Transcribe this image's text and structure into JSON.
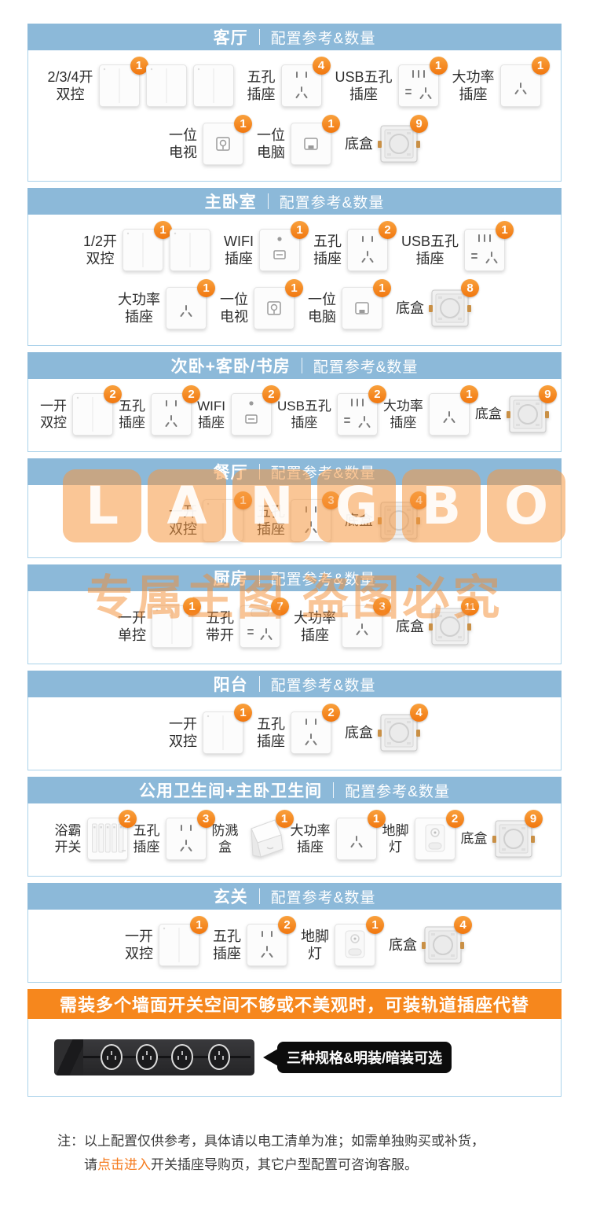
{
  "sections": [
    {
      "id": "living-room",
      "title": "客厅",
      "subtitle": "配置参考&数量",
      "rows": [
        [
          {
            "label": [
              "2/3/4开",
              "双控"
            ],
            "icon": "switch-panel",
            "panels": 3,
            "count": "1"
          },
          {
            "label": [
              "五孔",
              "插座"
            ],
            "icon": "socket5",
            "panels": 1,
            "count": "4"
          },
          {
            "label": [
              "USB五孔",
              "插座"
            ],
            "icon": "usb5",
            "panels": 1,
            "count": "1"
          },
          {
            "label": [
              "大功率",
              "插座"
            ],
            "icon": "power3",
            "panels": 1,
            "count": "1"
          }
        ],
        [
          {
            "label": [
              "一位",
              "电视"
            ],
            "icon": "tv",
            "panels": 1,
            "count": "1"
          },
          {
            "label": [
              "一位",
              "电脑"
            ],
            "icon": "pc",
            "panels": 1,
            "count": "1"
          },
          {
            "label": [
              "底盒"
            ],
            "icon": "box",
            "panels": 1,
            "count": "9"
          }
        ]
      ]
    },
    {
      "id": "master-bedroom",
      "title": "主卧室",
      "subtitle": "配置参考&数量",
      "rows": [
        [
          {
            "label": [
              "1/2开",
              "双控"
            ],
            "icon": "switch-panel",
            "panels": 2,
            "count": "1"
          },
          {
            "label": [
              "WIFI",
              "插座"
            ],
            "icon": "wifi",
            "panels": 1,
            "count": "1"
          },
          {
            "label": [
              "五孔",
              "插座"
            ],
            "icon": "socket5",
            "panels": 1,
            "count": "2"
          },
          {
            "label": [
              "USB五孔",
              "插座"
            ],
            "icon": "usb5",
            "panels": 1,
            "count": "1"
          }
        ],
        [
          {
            "label": [
              "大功率",
              "插座"
            ],
            "icon": "power3",
            "panels": 1,
            "count": "1"
          },
          {
            "label": [
              "一位",
              "电视"
            ],
            "icon": "tv",
            "panels": 1,
            "count": "1"
          },
          {
            "label": [
              "一位",
              "电脑"
            ],
            "icon": "pc",
            "panels": 1,
            "count": "1"
          },
          {
            "label": [
              "底盒"
            ],
            "icon": "box",
            "panels": 1,
            "count": "8"
          }
        ]
      ]
    },
    {
      "id": "second-bedroom-study",
      "title": "次卧+客卧/书房",
      "subtitle": "配置参考&数量",
      "rows": [
        [
          {
            "label": [
              "一开",
              "双控"
            ],
            "icon": "switch-panel",
            "panels": 1,
            "count": "2"
          },
          {
            "label": [
              "五孔",
              "插座"
            ],
            "icon": "socket5",
            "panels": 1,
            "count": "2"
          },
          {
            "label": [
              "WIFI",
              "插座"
            ],
            "icon": "wifi",
            "panels": 1,
            "count": "2"
          },
          {
            "label": [
              "USB五孔",
              "插座"
            ],
            "icon": "usb5",
            "panels": 1,
            "count": "2"
          },
          {
            "label": [
              "大功率",
              "插座"
            ],
            "icon": "power3",
            "panels": 1,
            "count": "1"
          },
          {
            "label": [
              "底盒"
            ],
            "icon": "box",
            "panels": 1,
            "count": "9"
          }
        ]
      ]
    },
    {
      "id": "dining-room",
      "title": "餐厅",
      "subtitle": "配置参考&数量",
      "rows": [
        [
          {
            "label": [
              "一开",
              "双控"
            ],
            "icon": "switch-panel",
            "panels": 1,
            "count": "1"
          },
          {
            "label": [
              "五孔",
              "插座"
            ],
            "icon": "socket5",
            "panels": 1,
            "count": "3"
          },
          {
            "label": [
              "底盒"
            ],
            "icon": "box",
            "panels": 1,
            "count": "4"
          }
        ]
      ]
    },
    {
      "id": "kitchen",
      "title": "厨房",
      "subtitle": "配置参考&数量",
      "rows": [
        [
          {
            "label": [
              "一开",
              "单控"
            ],
            "icon": "switch-panel",
            "panels": 1,
            "count": "1"
          },
          {
            "label": [
              "五孔",
              "带开"
            ],
            "icon": "socket5-switch",
            "panels": 1,
            "count": "7"
          },
          {
            "label": [
              "大功率",
              "插座"
            ],
            "icon": "power3",
            "panels": 1,
            "count": "3"
          },
          {
            "label": [
              "底盒"
            ],
            "icon": "box",
            "panels": 1,
            "count": "11"
          }
        ]
      ]
    },
    {
      "id": "balcony",
      "title": "阳台",
      "subtitle": "配置参考&数量",
      "rows": [
        [
          {
            "label": [
              "一开",
              "双控"
            ],
            "icon": "switch-panel",
            "panels": 1,
            "count": "1"
          },
          {
            "label": [
              "五孔",
              "插座"
            ],
            "icon": "socket5",
            "panels": 1,
            "count": "2"
          },
          {
            "label": [
              "底盒"
            ],
            "icon": "box",
            "panels": 1,
            "count": "4"
          }
        ]
      ]
    },
    {
      "id": "bathrooms",
      "title": "公用卫生间+主卧卫生间",
      "subtitle": "配置参考&数量",
      "rows": [
        [
          {
            "label": [
              "浴霸",
              "开关"
            ],
            "icon": "bath-switch",
            "panels": 1,
            "count": "2"
          },
          {
            "label": [
              "五孔",
              "插座"
            ],
            "icon": "socket5",
            "panels": 1,
            "count": "3"
          },
          {
            "label": [
              "防溅",
              "盒"
            ],
            "icon": "splash-cover",
            "panels": 1,
            "count": "1"
          },
          {
            "label": [
              "大功率",
              "插座"
            ],
            "icon": "power3",
            "panels": 1,
            "count": "1"
          },
          {
            "label": [
              "地脚",
              "灯"
            ],
            "icon": "foot-light",
            "panels": 1,
            "count": "2"
          },
          {
            "label": [
              "底盒"
            ],
            "icon": "box",
            "panels": 1,
            "count": "9"
          }
        ]
      ]
    },
    {
      "id": "entrance",
      "title": "玄关",
      "subtitle": "配置参考&数量",
      "rows": [
        [
          {
            "label": [
              "一开",
              "双控"
            ],
            "icon": "switch-panel",
            "panels": 1,
            "count": "1"
          },
          {
            "label": [
              "五孔",
              "插座"
            ],
            "icon": "socket5",
            "panels": 1,
            "count": "2"
          },
          {
            "label": [
              "地脚",
              "灯"
            ],
            "icon": "foot-light",
            "panels": 1,
            "count": "1"
          },
          {
            "label": [
              "底盒"
            ],
            "icon": "box",
            "panels": 1,
            "count": "4"
          }
        ]
      ]
    }
  ],
  "banner": {
    "text": "需装多个墙面开关空间不够或不美观时，可装轨道插座代替"
  },
  "track": {
    "callout": "三种规格&明装/暗装可选",
    "socket_count": 4
  },
  "note": {
    "prefix": "注：",
    "line1": "以上配置仅供参考，具体请以电工清单为准；如需单独购买或补货，",
    "line2_pre": "请",
    "line2_link": "点击进入",
    "line2_post": "开关插座导购页，其它户型配置可咨询客服。"
  },
  "watermarks": {
    "brand_letters": [
      "L",
      "A",
      "N",
      "G",
      "B",
      "O"
    ],
    "slogan": "专属主图  盗图必究"
  },
  "colors": {
    "header_blue": "#8cb9d9",
    "border_blue": "#aad2ea",
    "badge_orange": "#f5861c",
    "banner_orange": "#f6871d",
    "link_orange": "#f57b1e"
  }
}
